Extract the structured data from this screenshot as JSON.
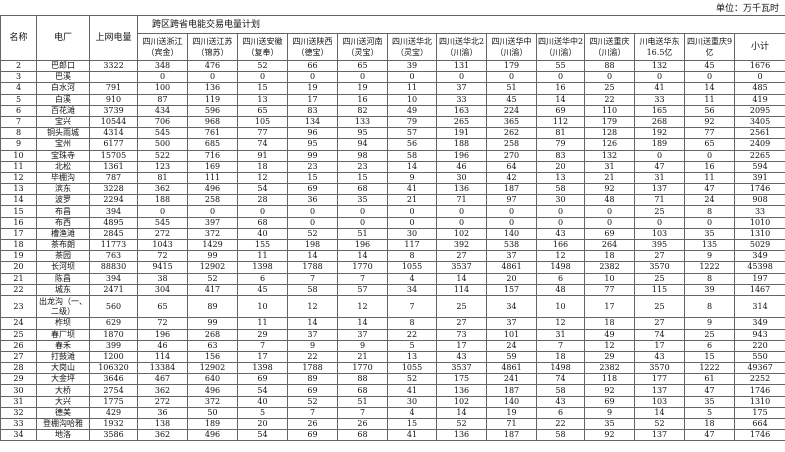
{
  "unit_label": "单位：万千瓦时",
  "header": {
    "no": "名称",
    "plant": "电厂",
    "grid": "上网电量",
    "group": "跨区跨省电能交易电量计划",
    "columns": [
      "四川送浙江（宾金）",
      "四川送江苏（锦苏）",
      "四川送安徽（复奉）",
      "四川送陕西（德宝）",
      "四川送河南（灵宝）",
      "四川送华北（灵宝）",
      "四川送华北2（川渝）",
      "四川送华中（川渝）",
      "四川送华中2（川渝）",
      "四川送重庆（川渝）",
      "川电送华东16.5亿",
      "四川送重庆9亿",
      "小计"
    ]
  },
  "rows": [
    [
      "2",
      "巴郎口",
      "3322",
      "348",
      "476",
      "52",
      "66",
      "65",
      "39",
      "131",
      "179",
      "55",
      "88",
      "132",
      "45",
      "1676"
    ],
    [
      "3",
      "巴溪",
      "",
      "0",
      "0",
      "0",
      "0",
      "0",
      "0",
      "0",
      "0",
      "0",
      "0",
      "0",
      "0",
      "0"
    ],
    [
      "4",
      "白水河",
      "791",
      "100",
      "136",
      "15",
      "19",
      "19",
      "11",
      "37",
      "51",
      "16",
      "25",
      "41",
      "14",
      "485"
    ],
    [
      "5",
      "白溪",
      "910",
      "87",
      "119",
      "13",
      "17",
      "16",
      "10",
      "33",
      "45",
      "14",
      "22",
      "33",
      "11",
      "419"
    ],
    [
      "6",
      "百花滩",
      "3739",
      "434",
      "596",
      "65",
      "83",
      "82",
      "49",
      "163",
      "224",
      "69",
      "110",
      "165",
      "56",
      "2095"
    ],
    [
      "7",
      "宝兴",
      "10544",
      "706",
      "968",
      "105",
      "134",
      "133",
      "79",
      "265",
      "365",
      "112",
      "179",
      "268",
      "92",
      "3405"
    ],
    [
      "8",
      "铜头雨城",
      "4314",
      "545",
      "761",
      "77",
      "96",
      "95",
      "57",
      "191",
      "262",
      "81",
      "128",
      "192",
      "77",
      "2561"
    ],
    [
      "9",
      "宝州",
      "6177",
      "500",
      "685",
      "74",
      "95",
      "94",
      "56",
      "188",
      "258",
      "79",
      "126",
      "189",
      "65",
      "2409"
    ],
    [
      "10",
      "宝珠寺",
      "15705",
      "522",
      "716",
      "91",
      "99",
      "98",
      "58",
      "196",
      "270",
      "83",
      "132",
      "0",
      "0",
      "2265"
    ],
    [
      "11",
      "北松",
      "1361",
      "123",
      "169",
      "18",
      "23",
      "23",
      "14",
      "46",
      "64",
      "20",
      "31",
      "47",
      "16",
      "594"
    ],
    [
      "12",
      "毕棚沟",
      "787",
      "81",
      "111",
      "12",
      "15",
      "15",
      "9",
      "30",
      "42",
      "13",
      "21",
      "31",
      "11",
      "391"
    ],
    [
      "13",
      "滨东",
      "3228",
      "362",
      "496",
      "54",
      "69",
      "68",
      "41",
      "136",
      "187",
      "58",
      "92",
      "137",
      "47",
      "1746"
    ],
    [
      "14",
      "波罗",
      "2294",
      "188",
      "258",
      "28",
      "36",
      "35",
      "21",
      "71",
      "97",
      "30",
      "48",
      "71",
      "24",
      "908"
    ],
    [
      "15",
      "布昌",
      "394",
      "0",
      "0",
      "0",
      "0",
      "0",
      "0",
      "0",
      "0",
      "0",
      "0",
      "25",
      "8",
      "33"
    ],
    [
      "16",
      "布西",
      "4895",
      "545",
      "397",
      "68",
      "0",
      "0",
      "0",
      "0",
      "0",
      "0",
      "0",
      "0",
      "0",
      "1010"
    ],
    [
      "17",
      "槽渔滩",
      "2845",
      "272",
      "372",
      "40",
      "52",
      "51",
      "30",
      "102",
      "140",
      "43",
      "69",
      "103",
      "35",
      "1310"
    ],
    [
      "18",
      "茶布朗",
      "11773",
      "1043",
      "1429",
      "155",
      "198",
      "196",
      "117",
      "392",
      "538",
      "166",
      "264",
      "395",
      "135",
      "5029"
    ],
    [
      "19",
      "茶园",
      "763",
      "72",
      "99",
      "11",
      "14",
      "14",
      "8",
      "27",
      "37",
      "12",
      "18",
      "27",
      "9",
      "349"
    ],
    [
      "20",
      "长河坝",
      "88830",
      "9415",
      "12902",
      "1398",
      "1788",
      "1770",
      "1055",
      "3537",
      "4861",
      "1498",
      "2382",
      "3570",
      "1222",
      "45398"
    ],
    [
      "21",
      "陈昌",
      "394",
      "38",
      "52",
      "6",
      "7",
      "7",
      "4",
      "14",
      "20",
      "6",
      "10",
      "25",
      "8",
      "197"
    ],
    [
      "22",
      "城东",
      "2471",
      "304",
      "417",
      "45",
      "58",
      "57",
      "34",
      "114",
      "157",
      "48",
      "77",
      "115",
      "39",
      "1467"
    ],
    [
      "23",
      "出龙沟（一、二级）",
      "560",
      "65",
      "89",
      "10",
      "12",
      "12",
      "7",
      "25",
      "34",
      "10",
      "17",
      "25",
      "8",
      "314"
    ],
    [
      "24",
      "柞坝",
      "629",
      "72",
      "99",
      "11",
      "14",
      "14",
      "8",
      "27",
      "37",
      "12",
      "18",
      "27",
      "9",
      "349"
    ],
    [
      "25",
      "春厂坝",
      "1870",
      "196",
      "268",
      "29",
      "37",
      "37",
      "22",
      "73",
      "101",
      "31",
      "49",
      "74",
      "25",
      "943"
    ],
    [
      "26",
      "春禾",
      "399",
      "46",
      "63",
      "7",
      "9",
      "9",
      "5",
      "17",
      "24",
      "7",
      "12",
      "17",
      "6",
      "220"
    ],
    [
      "27",
      "打鼓滩",
      "1200",
      "114",
      "156",
      "17",
      "22",
      "21",
      "13",
      "43",
      "59",
      "18",
      "29",
      "43",
      "15",
      "550"
    ],
    [
      "28",
      "大岗山",
      "106320",
      "13384",
      "12902",
      "1398",
      "1788",
      "1770",
      "1055",
      "3537",
      "4861",
      "1498",
      "2382",
      "3570",
      "1222",
      "49367"
    ],
    [
      "29",
      "大金坪",
      "3646",
      "467",
      "640",
      "69",
      "89",
      "88",
      "52",
      "175",
      "241",
      "74",
      "118",
      "177",
      "61",
      "2252"
    ],
    [
      "30",
      "大桥",
      "2754",
      "362",
      "496",
      "54",
      "69",
      "68",
      "41",
      "136",
      "187",
      "58",
      "92",
      "137",
      "47",
      "1746"
    ],
    [
      "31",
      "大兴",
      "1775",
      "272",
      "372",
      "40",
      "52",
      "51",
      "30",
      "102",
      "140",
      "43",
      "69",
      "103",
      "35",
      "1310"
    ],
    [
      "32",
      "德美",
      "429",
      "36",
      "50",
      "5",
      "7",
      "7",
      "4",
      "14",
      "19",
      "6",
      "9",
      "14",
      "5",
      "175"
    ],
    [
      "33",
      "登棚沟哈雅",
      "1932",
      "138",
      "189",
      "20",
      "26",
      "26",
      "15",
      "52",
      "71",
      "22",
      "35",
      "52",
      "18",
      "664"
    ],
    [
      "34",
      "地洛",
      "3586",
      "362",
      "496",
      "54",
      "69",
      "68",
      "41",
      "136",
      "187",
      "58",
      "92",
      "137",
      "47",
      "1746"
    ]
  ]
}
